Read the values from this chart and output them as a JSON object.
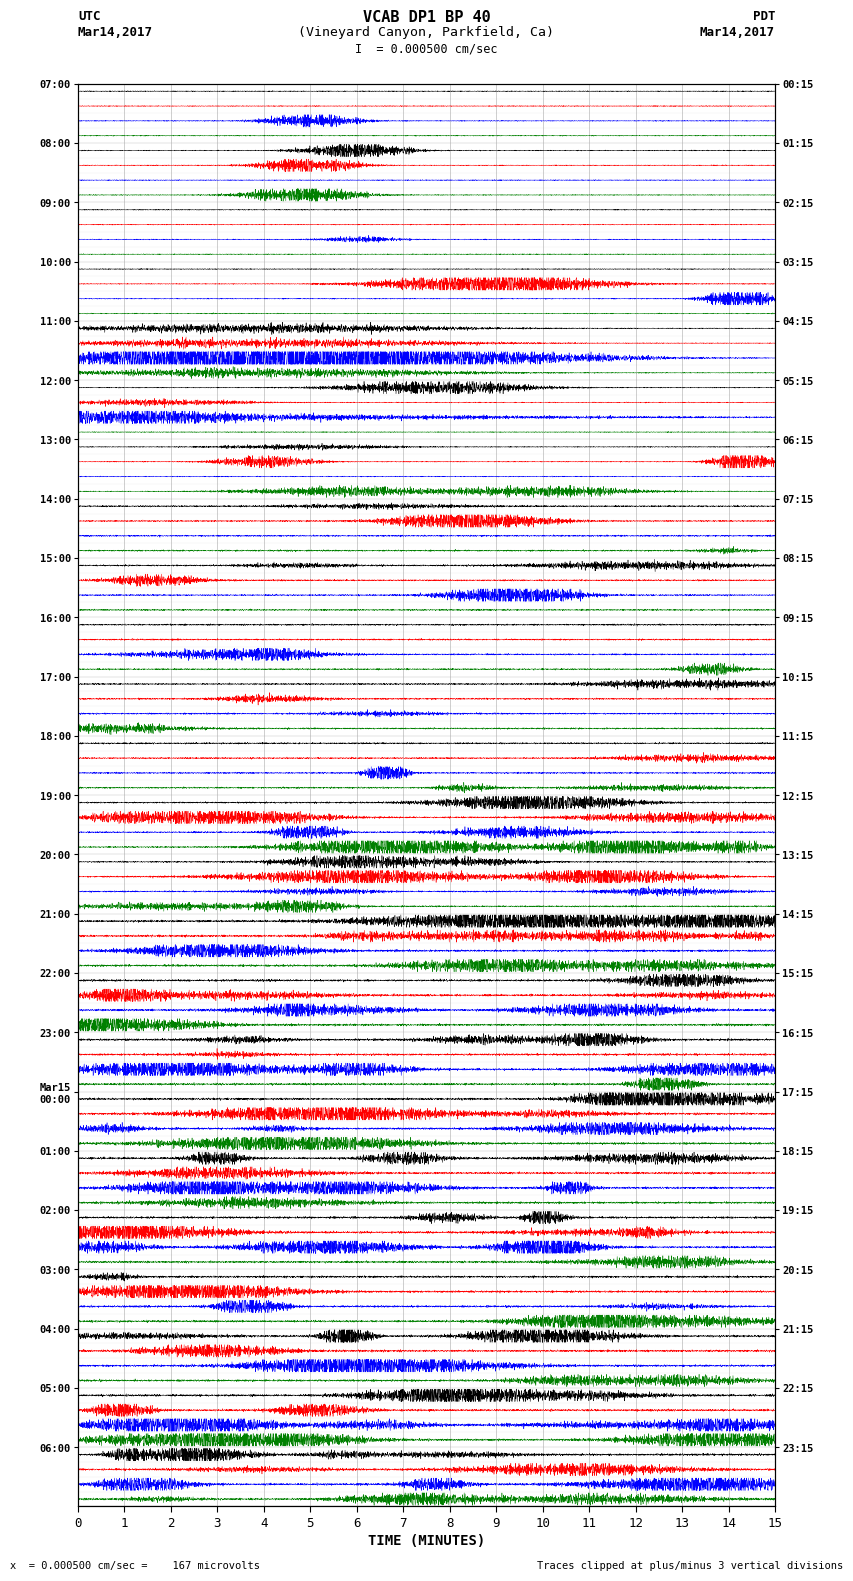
{
  "title_line1": "VCAB DP1 BP 40",
  "title_line2": "(Vineyard Canyon, Parkfield, Ca)",
  "scale_text": "I  = 0.000500 cm/sec",
  "left_header_line1": "UTC",
  "left_header_line2": "Mar14,2017",
  "right_header_line1": "PDT",
  "right_header_line2": "Mar14,2017",
  "bottom_label": "TIME (MINUTES)",
  "bottom_note_left": "x  = 0.000500 cm/sec =    167 microvolts",
  "bottom_note_right": "Traces clipped at plus/minus 3 vertical divisions",
  "xlabel_ticks": [
    0,
    1,
    2,
    3,
    4,
    5,
    6,
    7,
    8,
    9,
    10,
    11,
    12,
    13,
    14,
    15
  ],
  "trace_colors": [
    "black",
    "red",
    "blue",
    "green"
  ],
  "bg_color": "#ffffff",
  "n_rows": 96,
  "left_labels_utc": [
    "07:00",
    "",
    "",
    "",
    "08:00",
    "",
    "",
    "",
    "09:00",
    "",
    "",
    "",
    "10:00",
    "",
    "",
    "",
    "11:00",
    "",
    "",
    "",
    "12:00",
    "",
    "",
    "",
    "13:00",
    "",
    "",
    "",
    "14:00",
    "",
    "",
    "",
    "15:00",
    "",
    "",
    "",
    "16:00",
    "",
    "",
    "",
    "17:00",
    "",
    "",
    "",
    "18:00",
    "",
    "",
    "",
    "19:00",
    "",
    "",
    "",
    "20:00",
    "",
    "",
    "",
    "21:00",
    "",
    "",
    "",
    "22:00",
    "",
    "",
    "",
    "23:00",
    "",
    "",
    "",
    "Mar15\n00:00",
    "",
    "",
    "",
    "01:00",
    "",
    "",
    "",
    "02:00",
    "",
    "",
    "",
    "03:00",
    "",
    "",
    "",
    "04:00",
    "",
    "",
    "",
    "05:00",
    "",
    "",
    "",
    "06:00",
    "",
    "",
    ""
  ],
  "right_labels_pdt": [
    "00:15",
    "",
    "",
    "",
    "01:15",
    "",
    "",
    "",
    "02:15",
    "",
    "",
    "",
    "03:15",
    "",
    "",
    "",
    "04:15",
    "",
    "",
    "",
    "05:15",
    "",
    "",
    "",
    "06:15",
    "",
    "",
    "",
    "07:15",
    "",
    "",
    "",
    "08:15",
    "",
    "",
    "",
    "09:15",
    "",
    "",
    "",
    "10:15",
    "",
    "",
    "",
    "11:15",
    "",
    "",
    "",
    "12:15",
    "",
    "",
    "",
    "13:15",
    "",
    "",
    "",
    "14:15",
    "",
    "",
    "",
    "15:15",
    "",
    "",
    "",
    "16:15",
    "",
    "",
    "",
    "17:15",
    "",
    "",
    "",
    "18:15",
    "",
    "",
    "",
    "19:15",
    "",
    "",
    "",
    "20:15",
    "",
    "",
    "",
    "21:15",
    "",
    "",
    "",
    "22:15",
    "",
    "",
    "",
    "23:15",
    "",
    "",
    ""
  ]
}
